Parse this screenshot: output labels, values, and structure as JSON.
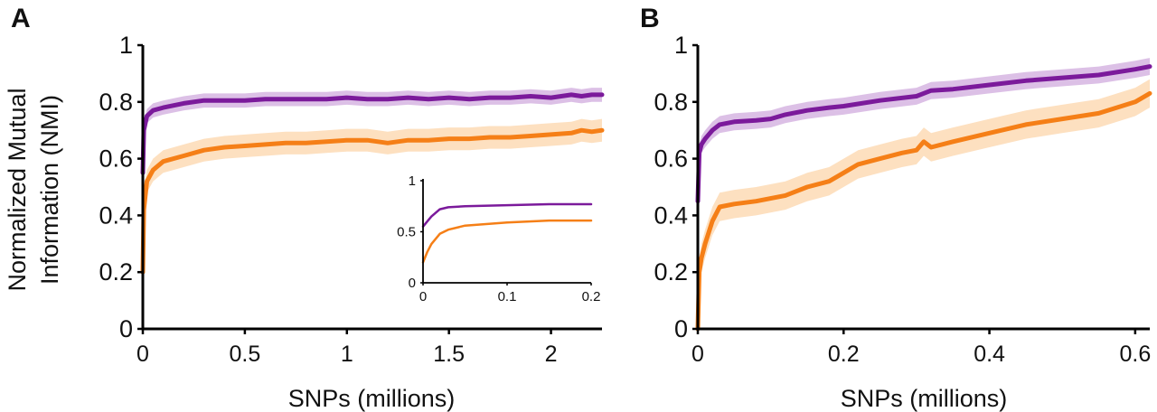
{
  "figure": {
    "ylabel_lines": [
      "Normalized Mutual",
      "Information (NMI)"
    ]
  },
  "colors": {
    "purple": "#7b1a9b",
    "purple_band": "#dcc0e6",
    "orange": "#f57f17",
    "orange_band": "#fde0c0"
  },
  "chart_data": [
    {
      "panel": "A",
      "type": "line",
      "xlabel": "SNPs (millions)",
      "ylabel": "Normalized Mutual Information (NMI)",
      "xlim": [
        0,
        2.25
      ],
      "ylim": [
        0,
        1
      ],
      "xticks": [
        0,
        0.5,
        1,
        1.5,
        2
      ],
      "xtick_labels": [
        "0",
        "0.5",
        "1",
        "1.5",
        "2"
      ],
      "yticks": [
        0,
        0.2,
        0.4,
        0.6,
        0.8,
        1
      ],
      "ytick_labels": [
        "0",
        "0.2",
        "0.4",
        "0.6",
        "0.8",
        "1"
      ],
      "series": [
        {
          "color": "purple",
          "x": [
            0,
            0.005,
            0.02,
            0.05,
            0.1,
            0.2,
            0.3,
            0.4,
            0.5,
            0.6,
            0.7,
            0.8,
            0.9,
            1.0,
            1.1,
            1.2,
            1.3,
            1.4,
            1.5,
            1.6,
            1.7,
            1.8,
            1.9,
            2.0,
            2.1,
            2.15,
            2.2,
            2.25
          ],
          "y": [
            0.55,
            0.7,
            0.75,
            0.77,
            0.78,
            0.795,
            0.805,
            0.805,
            0.805,
            0.81,
            0.81,
            0.81,
            0.81,
            0.815,
            0.81,
            0.81,
            0.815,
            0.81,
            0.815,
            0.81,
            0.815,
            0.815,
            0.82,
            0.815,
            0.825,
            0.82,
            0.825,
            0.825
          ],
          "band": 0.025
        },
        {
          "color": "orange",
          "x": [
            0,
            0.005,
            0.02,
            0.05,
            0.1,
            0.2,
            0.3,
            0.4,
            0.5,
            0.6,
            0.7,
            0.8,
            0.9,
            1.0,
            1.1,
            1.2,
            1.3,
            1.4,
            1.5,
            1.6,
            1.7,
            1.8,
            1.9,
            2.0,
            2.1,
            2.15,
            2.2,
            2.25
          ],
          "y": [
            0.2,
            0.42,
            0.52,
            0.56,
            0.59,
            0.61,
            0.63,
            0.64,
            0.645,
            0.65,
            0.655,
            0.655,
            0.66,
            0.665,
            0.665,
            0.655,
            0.665,
            0.665,
            0.67,
            0.67,
            0.675,
            0.675,
            0.68,
            0.685,
            0.69,
            0.7,
            0.695,
            0.7
          ],
          "band": 0.04
        }
      ],
      "inset": {
        "xlim": [
          0,
          0.2
        ],
        "ylim": [
          0,
          1
        ],
        "xticks": [
          0,
          0.1,
          0.2
        ],
        "xtick_labels": [
          "0",
          "0.1",
          "0.2"
        ],
        "yticks": [
          0,
          0.5,
          1
        ],
        "ytick_labels": [
          "0",
          "0.5",
          "1"
        ],
        "series": [
          {
            "color": "purple",
            "x": [
              0,
              0.005,
              0.01,
              0.02,
              0.03,
              0.05,
              0.1,
              0.15,
              0.2
            ],
            "y": [
              0.55,
              0.6,
              0.65,
              0.72,
              0.74,
              0.75,
              0.76,
              0.77,
              0.77
            ]
          },
          {
            "color": "orange",
            "x": [
              0,
              0.005,
              0.01,
              0.02,
              0.03,
              0.05,
              0.1,
              0.15,
              0.2
            ],
            "y": [
              0.2,
              0.3,
              0.38,
              0.48,
              0.52,
              0.56,
              0.59,
              0.61,
              0.61
            ]
          }
        ]
      }
    },
    {
      "panel": "B",
      "type": "line",
      "xlabel": "SNPs (millions)",
      "ylabel": "",
      "xlim": [
        0,
        0.62
      ],
      "ylim": [
        0,
        1
      ],
      "xticks": [
        0,
        0.2,
        0.4,
        0.6
      ],
      "xtick_labels": [
        "0",
        "0.2",
        "0.4",
        "0.6"
      ],
      "yticks": [
        0,
        0.2,
        0.4,
        0.6,
        0.8,
        1
      ],
      "ytick_labels": [
        "0",
        "0.2",
        "0.4",
        "0.6",
        "0.8",
        "1"
      ],
      "series": [
        {
          "color": "purple",
          "x": [
            0,
            0.002,
            0.005,
            0.01,
            0.02,
            0.03,
            0.05,
            0.08,
            0.1,
            0.12,
            0.15,
            0.18,
            0.2,
            0.25,
            0.3,
            0.32,
            0.35,
            0.4,
            0.45,
            0.5,
            0.55,
            0.6,
            0.62
          ],
          "y": [
            0.45,
            0.62,
            0.65,
            0.67,
            0.7,
            0.72,
            0.73,
            0.735,
            0.74,
            0.755,
            0.77,
            0.78,
            0.785,
            0.805,
            0.82,
            0.84,
            0.845,
            0.86,
            0.875,
            0.885,
            0.895,
            0.915,
            0.925
          ],
          "band": 0.03
        },
        {
          "color": "orange",
          "x": [
            0,
            0.002,
            0.005,
            0.01,
            0.02,
            0.03,
            0.05,
            0.08,
            0.1,
            0.12,
            0.13,
            0.15,
            0.18,
            0.2,
            0.22,
            0.25,
            0.28,
            0.3,
            0.31,
            0.32,
            0.35,
            0.4,
            0.45,
            0.5,
            0.55,
            0.6,
            0.62
          ],
          "y": [
            0.0,
            0.2,
            0.25,
            0.3,
            0.38,
            0.43,
            0.44,
            0.45,
            0.46,
            0.47,
            0.48,
            0.5,
            0.52,
            0.55,
            0.58,
            0.6,
            0.62,
            0.63,
            0.66,
            0.64,
            0.66,
            0.69,
            0.72,
            0.74,
            0.76,
            0.8,
            0.83
          ],
          "band": 0.05
        }
      ]
    }
  ]
}
